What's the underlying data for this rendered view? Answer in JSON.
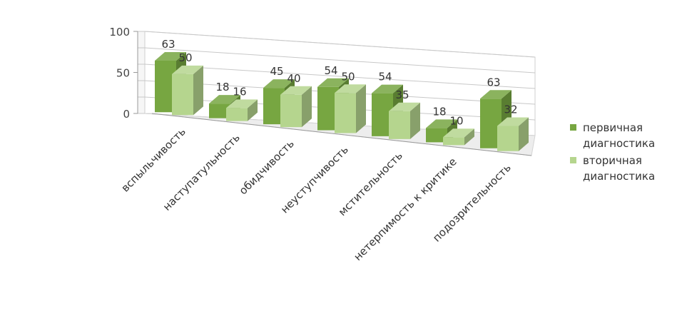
{
  "chart_data": {
    "type": "bar",
    "title": "",
    "xlabel": "",
    "ylabel": "",
    "ylim": [
      0,
      100
    ],
    "yticks": [
      0,
      50,
      100
    ],
    "categories": [
      "вспыльчивость",
      "наступатульность",
      "обидчивость",
      "неуступчивость",
      "мстительность",
      "нетерпимость к критике",
      "подозрительность"
    ],
    "series": [
      {
        "name": "первичная диагностика",
        "values": [
          63,
          18,
          45,
          54,
          54,
          18,
          63
        ],
        "color": "#77A641"
      },
      {
        "name": "вторичная диагностика",
        "values": [
          50,
          16,
          40,
          50,
          35,
          10,
          32
        ],
        "color": "#B5D58E"
      }
    ],
    "grid": true,
    "legend": "right",
    "style": "3d-perspective"
  }
}
